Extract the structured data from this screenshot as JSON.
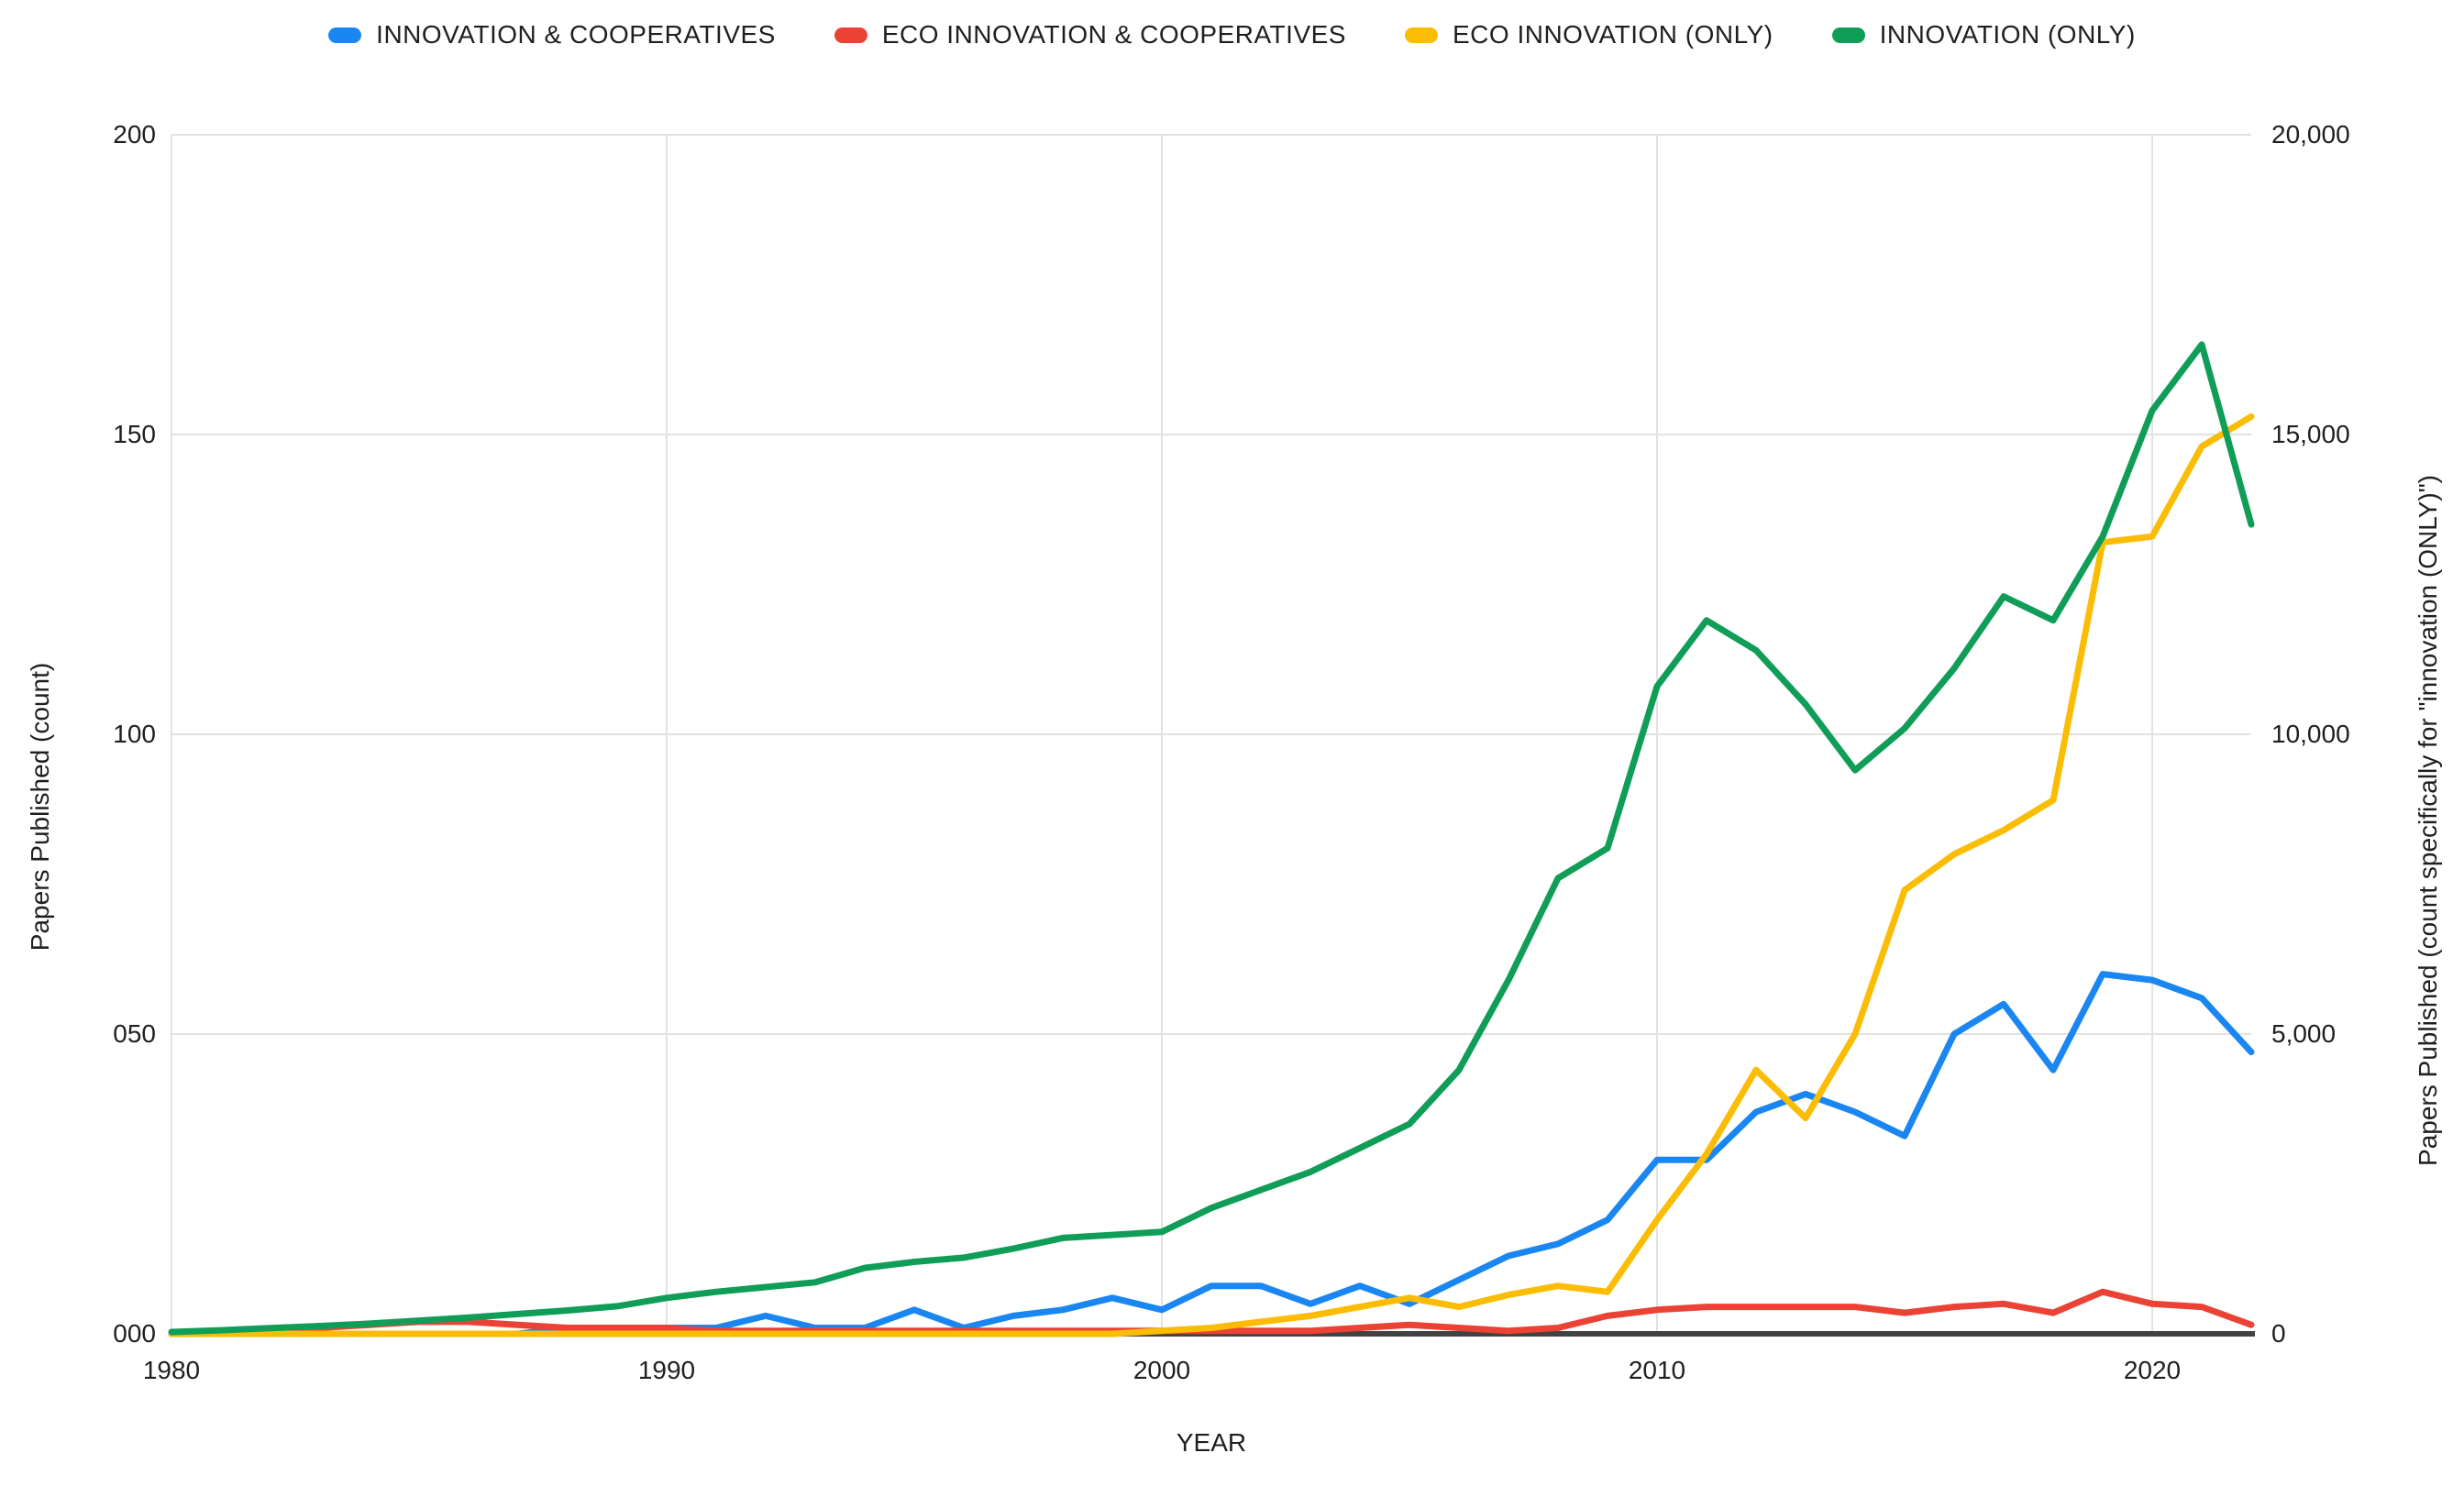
{
  "chart_data": {
    "type": "line",
    "xlabel": "YEAR",
    "x": [
      1980,
      1981,
      1982,
      1983,
      1984,
      1985,
      1986,
      1987,
      1988,
      1989,
      1990,
      1991,
      1992,
      1993,
      1994,
      1995,
      1996,
      1997,
      1998,
      1999,
      2000,
      2001,
      2002,
      2003,
      2004,
      2005,
      2006,
      2007,
      2008,
      2009,
      2010,
      2011,
      2012,
      2013,
      2014,
      2015,
      2016,
      2017,
      2018,
      2019,
      2020,
      2021,
      2022
    ],
    "x_ticks": [
      "1980",
      "1990",
      "2000",
      "2010",
      "2020"
    ],
    "left_axis": {
      "label": "Papers Published (count)",
      "ticks": [
        "000",
        "050",
        "100",
        "150",
        "200"
      ],
      "range": [
        0,
        200
      ]
    },
    "right_axis": {
      "label": "Papers Published (count specifically for \"innovation (ONLY)\")",
      "ticks": [
        "0",
        "5,000",
        "10,000",
        "15,000",
        "20,000"
      ],
      "range": [
        0,
        20000
      ]
    },
    "grid": true,
    "legend_position": "top",
    "series": [
      {
        "name": "INNOVATION & COOPERATIVES",
        "color": "#1A86F2",
        "axis": "left",
        "values": [
          0,
          0,
          0,
          0,
          0,
          0,
          0,
          0,
          1,
          1,
          1,
          1,
          3,
          1,
          1,
          4,
          1,
          3,
          4,
          6,
          4,
          8,
          8,
          5,
          8,
          5,
          9,
          13,
          15,
          19,
          29,
          29,
          37,
          40,
          37,
          33,
          50,
          55,
          44,
          60,
          59,
          56,
          47
        ]
      },
      {
        "name": "ECO INNOVATION & COOPERATIVES",
        "color": "#EA4335",
        "axis": "left",
        "values": [
          0,
          0,
          0.5,
          1,
          1.5,
          2,
          2,
          1.5,
          1,
          1,
          1,
          0.5,
          0.5,
          0.5,
          0.5,
          0.5,
          0.5,
          0.5,
          0.5,
          0.5,
          0.5,
          0.5,
          0.5,
          0.5,
          1,
          1.5,
          1,
          0.5,
          1,
          3,
          4,
          4.5,
          4.5,
          4.5,
          4.5,
          3.5,
          4.5,
          5,
          3.5,
          7,
          5,
          4.5,
          1.5
        ]
      },
      {
        "name": "ECO INNOVATION (ONLY)",
        "color": "#FBBC04",
        "axis": "left",
        "values": [
          0,
          0,
          0,
          0,
          0,
          0,
          0,
          0,
          0,
          0,
          0,
          0,
          0,
          0,
          0,
          0,
          0,
          0,
          0,
          0,
          0.5,
          1,
          2,
          3,
          4.5,
          6,
          4.5,
          6.5,
          8,
          7,
          19,
          30,
          44,
          36,
          50,
          74,
          80,
          84,
          89,
          132,
          133,
          148,
          153
        ]
      },
      {
        "name": "INNOVATION (ONLY)",
        "color": "#0F9D58",
        "axis": "right",
        "values": [
          30,
          60,
          95,
          130,
          170,
          220,
          270,
          330,
          390,
          460,
          600,
          700,
          780,
          860,
          1100,
          1200,
          1270,
          1420,
          1600,
          1650,
          1700,
          2100,
          2400,
          2700,
          3100,
          3500,
          4400,
          5900,
          7600,
          8100,
          10800,
          11900,
          11400,
          10500,
          9400,
          10100,
          11100,
          12300,
          11900,
          13300,
          15400,
          16500,
          13500
        ]
      }
    ],
    "style": {
      "gridline_color": "#e2e2e2",
      "axis_line_color": "#424242",
      "text_color": "#1f1f1f",
      "background": "#ffffff"
    }
  }
}
